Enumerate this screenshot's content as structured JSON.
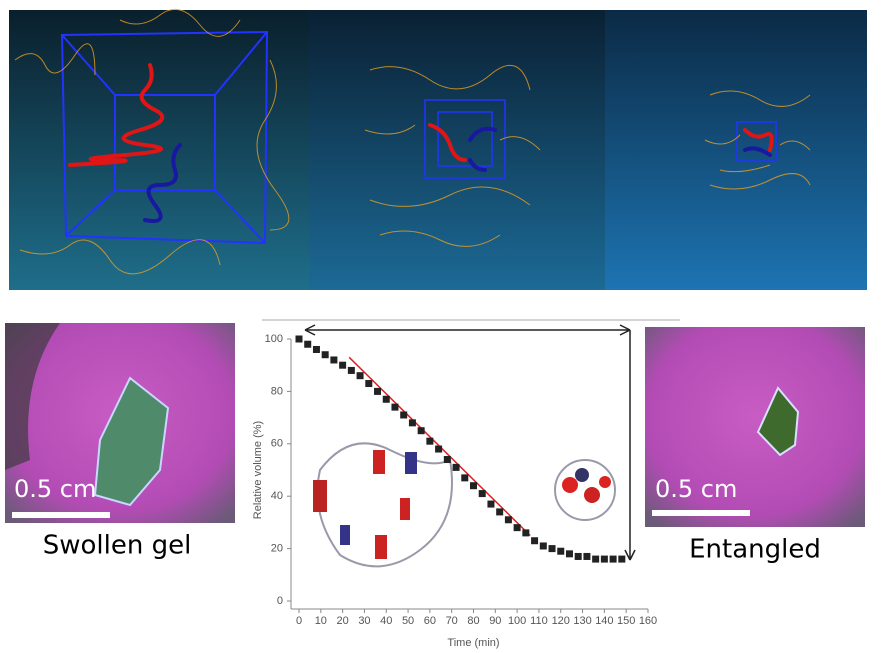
{
  "panels": {
    "left_photo": {
      "scale_label": "0.5 cm",
      "caption": "Swollen gel"
    },
    "right_photo": {
      "scale_label": "0.5 cm",
      "caption": "Entangled"
    }
  },
  "chart_data": {
    "type": "scatter",
    "x_label": "Time (min)",
    "y_label": "Relative volume (%)",
    "x": [
      0,
      4,
      8,
      12,
      16,
      20,
      24,
      28,
      32,
      36,
      40,
      44,
      48,
      52,
      56,
      60,
      64,
      68,
      72,
      76,
      80,
      84,
      88,
      92,
      96,
      100,
      104,
      108,
      112,
      116,
      120,
      124,
      128,
      132,
      136,
      140,
      144,
      148
    ],
    "values": [
      100,
      98,
      96,
      94,
      92,
      90,
      88,
      86,
      83,
      80,
      77,
      74,
      71,
      68,
      65,
      61,
      58,
      54,
      51,
      47,
      44,
      41,
      37,
      34,
      31,
      28,
      26,
      23,
      21,
      20,
      19,
      18,
      17,
      17,
      16,
      16,
      16,
      16
    ],
    "color": "#222222",
    "fit_line": {
      "x": [
        23,
        106
      ],
      "y": [
        93,
        25
      ],
      "color": "#e02020"
    },
    "xlim": [
      0,
      160
    ],
    "ylim": [
      0,
      100
    ],
    "xticks": [
      0,
      10,
      20,
      30,
      40,
      50,
      60,
      70,
      80,
      90,
      100,
      110,
      120,
      130,
      140,
      150,
      160
    ],
    "yticks": [
      0,
      20,
      40,
      60,
      80,
      100
    ]
  }
}
